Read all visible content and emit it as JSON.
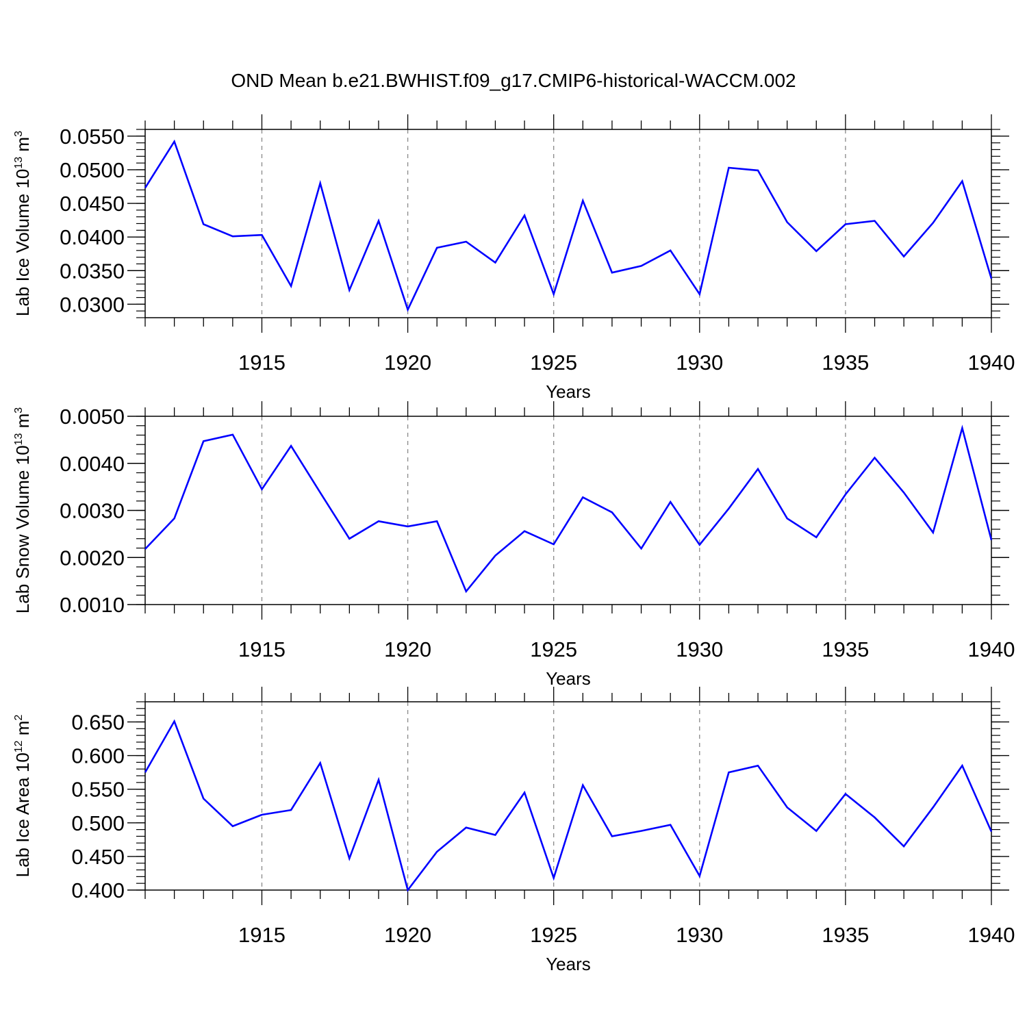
{
  "title": "OND Mean b.e21.BWHIST.f09_g17.CMIP6-historical-WACCM.002",
  "line_color": "#0000ff",
  "chart_data": [
    {
      "type": "line",
      "ylabel_main": "Lab Ice Volume 10",
      "ylabel_exp": "13",
      "ylabel_unit": " m",
      "ylabel_unit_exp": "3",
      "xlabel": "Years",
      "xlim": [
        1911,
        1940
      ],
      "ylim": [
        0.028,
        0.056
      ],
      "yticks": [
        0.03,
        0.035,
        0.04,
        0.045,
        0.05,
        0.055
      ],
      "ytick_labels": [
        "0.0300",
        "0.0350",
        "0.0400",
        "0.0450",
        "0.0500",
        "0.0550"
      ],
      "xticks": [
        1915,
        1920,
        1925,
        1930,
        1935,
        1940
      ],
      "xtick_labels": [
        "1915",
        "1920",
        "1925",
        "1930",
        "1935",
        "1940"
      ],
      "x": [
        1911,
        1912,
        1913,
        1914,
        1915,
        1916,
        1917,
        1918,
        1919,
        1920,
        1921,
        1922,
        1923,
        1924,
        1925,
        1926,
        1927,
        1928,
        1929,
        1930,
        1931,
        1932,
        1933,
        1934,
        1935,
        1936,
        1937,
        1938,
        1939,
        1940
      ],
      "values": [
        0.0473,
        0.0542,
        0.0419,
        0.0401,
        0.0403,
        0.0327,
        0.048,
        0.0321,
        0.0424,
        0.0292,
        0.0384,
        0.0393,
        0.0362,
        0.0432,
        0.0315,
        0.0454,
        0.0347,
        0.0357,
        0.038,
        0.0315,
        0.0503,
        0.0499,
        0.0422,
        0.0379,
        0.0419,
        0.0424,
        0.0371,
        0.0421,
        0.0483,
        0.0338
      ]
    },
    {
      "type": "line",
      "ylabel_main": "Lab Snow Volume 10",
      "ylabel_exp": "13",
      "ylabel_unit": " m",
      "ylabel_unit_exp": "3",
      "xlabel": "Years",
      "xlim": [
        1911,
        1940
      ],
      "ylim": [
        0.001,
        0.005
      ],
      "yticks": [
        0.001,
        0.002,
        0.003,
        0.004,
        0.005
      ],
      "ytick_labels": [
        "0.0010",
        "0.0020",
        "0.0030",
        "0.0040",
        "0.0050"
      ],
      "xticks": [
        1915,
        1920,
        1925,
        1930,
        1935,
        1940
      ],
      "xtick_labels": [
        "1915",
        "1920",
        "1925",
        "1930",
        "1935",
        "1940"
      ],
      "x": [
        1911,
        1912,
        1913,
        1914,
        1915,
        1916,
        1917,
        1918,
        1919,
        1920,
        1921,
        1922,
        1923,
        1924,
        1925,
        1926,
        1927,
        1928,
        1929,
        1930,
        1931,
        1932,
        1933,
        1934,
        1935,
        1936,
        1937,
        1938,
        1939,
        1940
      ],
      "values": [
        0.00218,
        0.00283,
        0.00447,
        0.00461,
        0.00345,
        0.00437,
        0.00338,
        0.0024,
        0.00277,
        0.00266,
        0.00277,
        0.00128,
        0.00204,
        0.00256,
        0.00228,
        0.00328,
        0.00296,
        0.00219,
        0.00318,
        0.00227,
        0.00304,
        0.00388,
        0.00283,
        0.00243,
        0.00334,
        0.00412,
        0.00338,
        0.00253,
        0.00475,
        0.00237
      ]
    },
    {
      "type": "line",
      "ylabel_main": "Lab Ice Area 10",
      "ylabel_exp": "12",
      "ylabel_unit": " m",
      "ylabel_unit_exp": "2",
      "xlabel": "Years",
      "xlim": [
        1911,
        1940
      ],
      "ylim": [
        0.4,
        0.68
      ],
      "yticks": [
        0.4,
        0.45,
        0.5,
        0.55,
        0.6,
        0.65
      ],
      "ytick_labels": [
        "0.400",
        "0.450",
        "0.500",
        "0.550",
        "0.600",
        "0.650"
      ],
      "xticks": [
        1915,
        1920,
        1925,
        1930,
        1935,
        1940
      ],
      "xtick_labels": [
        "1915",
        "1920",
        "1925",
        "1930",
        "1935",
        "1940"
      ],
      "x": [
        1911,
        1912,
        1913,
        1914,
        1915,
        1916,
        1917,
        1918,
        1919,
        1920,
        1921,
        1922,
        1923,
        1924,
        1925,
        1926,
        1927,
        1928,
        1929,
        1930,
        1931,
        1932,
        1933,
        1934,
        1935,
        1936,
        1937,
        1938,
        1939,
        1940
      ],
      "values": [
        0.575,
        0.651,
        0.536,
        0.495,
        0.512,
        0.519,
        0.589,
        0.447,
        0.564,
        0.4,
        0.457,
        0.493,
        0.482,
        0.545,
        0.418,
        0.556,
        0.48,
        0.488,
        0.497,
        0.421,
        0.575,
        0.585,
        0.523,
        0.488,
        0.543,
        0.508,
        0.465,
        0.523,
        0.585,
        0.487
      ]
    }
  ]
}
